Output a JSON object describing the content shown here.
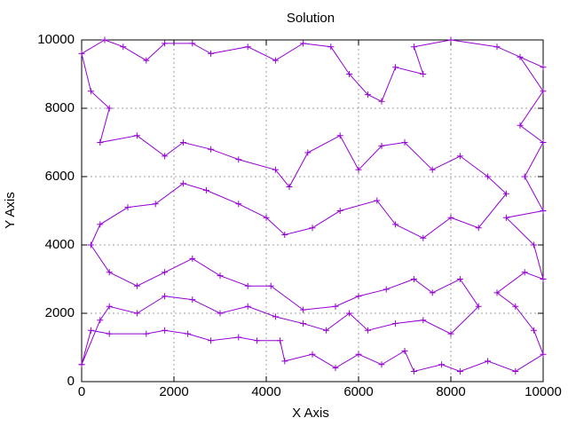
{
  "chart_data": {
    "type": "line",
    "title": "Solution",
    "x_label": "X Axis",
    "y_label": "Y Axis",
    "xlim": [
      0,
      10000
    ],
    "ylim": [
      0,
      10000
    ],
    "xticks": [
      0,
      2000,
      4000,
      6000,
      8000,
      10000
    ],
    "yticks": [
      0,
      2000,
      4000,
      6000,
      8000,
      10000
    ],
    "grid": true,
    "series": [
      {
        "color": "#9400d3",
        "x": [
          0,
          200,
          600,
          1400,
          1800,
          2300,
          2800,
          3400,
          3800,
          4300,
          4400,
          5000,
          5500,
          6000,
          6500,
          7000,
          7200,
          7800,
          8200,
          8800,
          9400,
          10000,
          9800,
          9400,
          9000,
          9600,
          10000,
          9800,
          9200,
          10000,
          9600,
          10000,
          9500,
          10000,
          9500,
          10000,
          9000,
          8000,
          7200,
          7400,
          6800,
          6500,
          6200,
          5800,
          5400,
          4800,
          4200,
          3600,
          2800,
          2400,
          1800,
          1400,
          900,
          500,
          0,
          200,
          600,
          400,
          1200,
          1800,
          2200,
          2800,
          3400,
          4200,
          4500,
          4900,
          5600,
          6000,
          6500,
          7000,
          7600,
          8200,
          8800,
          9200,
          8600,
          8000,
          7400,
          6800,
          6400,
          5600,
          5000,
          4400,
          4000,
          3400,
          2700,
          2200,
          1600,
          1000,
          400,
          200,
          600,
          1200,
          1800,
          2400,
          3000,
          3600,
          4100,
          4800,
          5500,
          6000,
          6600,
          7200,
          7600,
          8200,
          8600,
          8000,
          7400,
          6800,
          6200,
          5800,
          5300,
          4800,
          4200,
          3600,
          3000,
          2400,
          1800,
          1200,
          600,
          400,
          0
        ],
        "y": [
          500,
          1500,
          1400,
          1400,
          1500,
          1400,
          1200,
          1300,
          1200,
          1200,
          600,
          800,
          400,
          800,
          500,
          900,
          300,
          500,
          300,
          600,
          300,
          800,
          1500,
          2200,
          2600,
          3200,
          3000,
          4000,
          4800,
          5000,
          6000,
          7000,
          7500,
          8500,
          9500,
          9200,
          9800,
          10000,
          9800,
          9000,
          9200,
          8200,
          8400,
          9000,
          9800,
          9900,
          9400,
          9800,
          9600,
          9900,
          9900,
          9400,
          9800,
          10000,
          9600,
          8500,
          8000,
          7000,
          7200,
          6600,
          7000,
          6800,
          6500,
          6200,
          5700,
          6700,
          7200,
          6200,
          6900,
          7000,
          6200,
          6600,
          6000,
          5500,
          4500,
          4800,
          4200,
          4600,
          5300,
          5000,
          4500,
          4300,
          4800,
          5200,
          5600,
          5800,
          5200,
          5100,
          4600,
          4000,
          3200,
          2800,
          3200,
          3600,
          3100,
          2800,
          2800,
          2100,
          2200,
          2500,
          2700,
          3000,
          2600,
          3000,
          2200,
          1400,
          1800,
          1700,
          1500,
          2000,
          1500,
          1700,
          1900,
          2200,
          2000,
          2400,
          2500,
          2000,
          2200,
          1800,
          500
        ]
      }
    ]
  }
}
